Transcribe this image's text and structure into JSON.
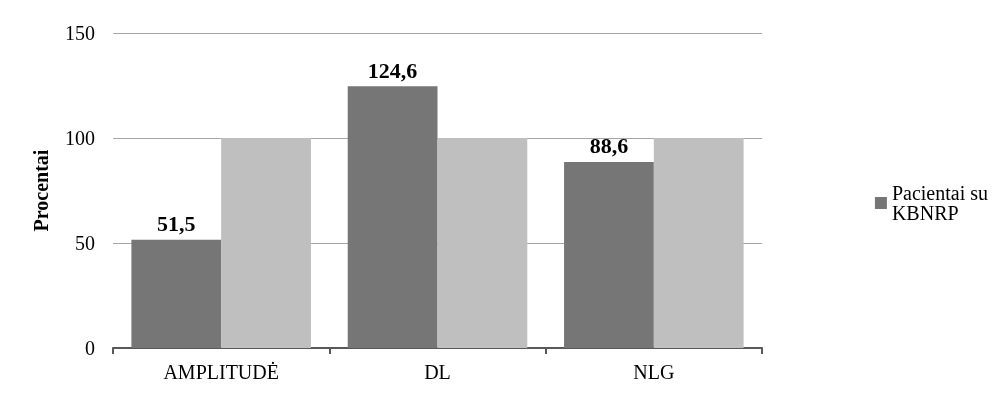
{
  "chart_data": {
    "type": "bar",
    "ylabel": "Procentai",
    "categories": [
      "AMPLITUDĖ",
      "DL",
      "NLG"
    ],
    "series": [
      {
        "name": "Pacientai su KBNRP",
        "color": "#767676",
        "values": [
          51.5,
          124.6,
          88.6
        ],
        "value_labels": [
          "51,5",
          "124,6",
          "88,6"
        ]
      },
      {
        "color": "#bfbfbf",
        "values": [
          100,
          100,
          100
        ]
      }
    ],
    "ylim": [
      0,
      150
    ],
    "yticks": [
      0,
      50,
      100,
      150
    ],
    "grid": "y",
    "legend": "right"
  }
}
